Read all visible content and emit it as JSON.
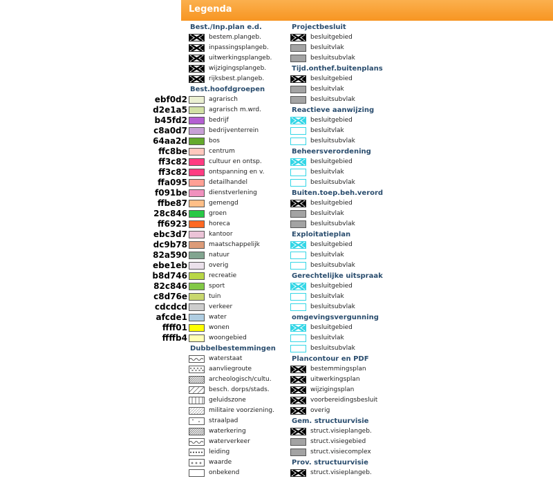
{
  "header": {
    "title": "Legenda"
  },
  "left_column": [
    {
      "type": "heading",
      "text": "Best./Inp.plan e.d."
    },
    {
      "type": "item",
      "label": "bestem.plangeb.",
      "swatch": "cross"
    },
    {
      "type": "item",
      "label": "inpassingsplangeb.",
      "swatch": "cross"
    },
    {
      "type": "item",
      "label": "uitwerkingsplangeb.",
      "swatch": "cross"
    },
    {
      "type": "item",
      "label": "wijzigingsplangeb.",
      "swatch": "cross"
    },
    {
      "type": "item",
      "label": "rijksbest.plangeb.",
      "swatch": "cross"
    },
    {
      "type": "heading",
      "text": "Best.hoofdgroepen"
    },
    {
      "type": "item",
      "label": "agrarisch",
      "swatch": "color",
      "color": "#ebf0d2",
      "code": "ebf0d2"
    },
    {
      "type": "item",
      "label": "agrarisch m.wrd.",
      "swatch": "color",
      "color": "#d2e1a5",
      "code": "d2e1a5"
    },
    {
      "type": "item",
      "label": "bedrijf",
      "swatch": "color",
      "color": "#b45fd2",
      "code": "b45fd2"
    },
    {
      "type": "item",
      "label": "bedrijventerrein",
      "swatch": "color",
      "color": "#c8a0d7",
      "code": "c8a0d7"
    },
    {
      "type": "item",
      "label": "bos",
      "swatch": "color",
      "color": "#64aa2d",
      "code": "64aa2d"
    },
    {
      "type": "item",
      "label": "centrum",
      "swatch": "color",
      "color": "#ffc8be",
      "code": "ffc8be"
    },
    {
      "type": "item",
      "label": "cultuur en ontsp.",
      "swatch": "color",
      "color": "#ff3c82",
      "code": "ff3c82"
    },
    {
      "type": "item",
      "label": "ontspanning en v.",
      "swatch": "color",
      "color": "#ff3c82",
      "code": "ff3c82"
    },
    {
      "type": "item",
      "label": "detailhandel",
      "swatch": "color",
      "color": "#ffa095",
      "code": "ffa095"
    },
    {
      "type": "item",
      "label": "dienstverlening",
      "swatch": "color",
      "color": "#f091be",
      "code": "f091be"
    },
    {
      "type": "item",
      "label": "gemengd",
      "swatch": "color",
      "color": "#ffbe87",
      "code": "ffbe87"
    },
    {
      "type": "item",
      "label": "groen",
      "swatch": "color",
      "color": "#28c846",
      "code": "28c846"
    },
    {
      "type": "item",
      "label": "horeca",
      "swatch": "color",
      "color": "#ff6923",
      "code": "ff6923"
    },
    {
      "type": "item",
      "label": "kantoor",
      "swatch": "color",
      "color": "#ebc3d7",
      "code": "ebc3d7"
    },
    {
      "type": "item",
      "label": "maatschappelijk",
      "swatch": "color",
      "color": "#dc9b78",
      "code": "dc9b78"
    },
    {
      "type": "item",
      "label": "natuur",
      "swatch": "color",
      "color": "#82a590",
      "code": "82a590"
    },
    {
      "type": "item",
      "label": "overig",
      "swatch": "color",
      "color": "#ebe1eb",
      "code": "ebe1eb"
    },
    {
      "type": "item",
      "label": "recreatie",
      "swatch": "color",
      "color": "#b8d746",
      "code": "b8d746"
    },
    {
      "type": "item",
      "label": "sport",
      "swatch": "color",
      "color": "#82c846",
      "code": "82c846"
    },
    {
      "type": "item",
      "label": "tuin",
      "swatch": "color",
      "color": "#c8d76e",
      "code": "c8d76e"
    },
    {
      "type": "item",
      "label": "verkeer",
      "swatch": "color",
      "color": "#cdcdcd",
      "code": "cdcdcd"
    },
    {
      "type": "item",
      "label": "water",
      "swatch": "color",
      "color": "#afcde1",
      "code": "afcde1"
    },
    {
      "type": "item",
      "label": "wonen",
      "swatch": "color",
      "color": "#ffff01",
      "code": "ffff01"
    },
    {
      "type": "item",
      "label": "woongebied",
      "swatch": "color",
      "color": "#ffffb4",
      "code": "ffffb4"
    },
    {
      "type": "heading",
      "text": "Dubbelbestemmingen"
    },
    {
      "type": "item",
      "label": "waterstaat",
      "swatch": "wave"
    },
    {
      "type": "item",
      "label": "aanvliegroute",
      "swatch": "xdots"
    },
    {
      "type": "item",
      "label": "archeologisch/cultu.",
      "swatch": "hatch-dense"
    },
    {
      "type": "item",
      "label": "besch. dorps/stads.",
      "swatch": "hatch-sparse"
    },
    {
      "type": "item",
      "label": "geluidszone",
      "swatch": "vlines"
    },
    {
      "type": "item",
      "label": "militaire voorziening.",
      "swatch": "hatch-dash"
    },
    {
      "type": "item",
      "label": "straalpad",
      "swatch": "dots-sparse"
    },
    {
      "type": "item",
      "label": "waterkering",
      "swatch": "hatch-dense"
    },
    {
      "type": "item",
      "label": "waterverkeer",
      "swatch": "wave"
    },
    {
      "type": "item",
      "label": "leiding",
      "swatch": "dots"
    },
    {
      "type": "item",
      "label": "waarde",
      "swatch": "plus"
    },
    {
      "type": "item",
      "label": "onbekend",
      "swatch": "empty"
    }
  ],
  "right_column": [
    {
      "type": "heading",
      "text": "Projectbesluit"
    },
    {
      "type": "item",
      "label": "besluitgebied",
      "swatch": "cross"
    },
    {
      "type": "item",
      "label": "besluitvlak",
      "swatch": "grey"
    },
    {
      "type": "item",
      "label": "besluitsubvlak",
      "swatch": "grey"
    },
    {
      "type": "heading",
      "text": "Tijd.onthef.buitenplans"
    },
    {
      "type": "item",
      "label": "besluitgebied",
      "swatch": "cross"
    },
    {
      "type": "item",
      "label": "besluitvlak",
      "swatch": "grey"
    },
    {
      "type": "item",
      "label": "besluitsubvlak",
      "swatch": "grey"
    },
    {
      "type": "heading",
      "text": "Reactieve aanwijzing"
    },
    {
      "type": "item",
      "label": "besluitgebied",
      "swatch": "cross-cyan"
    },
    {
      "type": "item",
      "label": "besluitvlak",
      "swatch": "cyan"
    },
    {
      "type": "item",
      "label": "besluitsubvlak",
      "swatch": "cyan"
    },
    {
      "type": "heading",
      "text": "Beheersverordening"
    },
    {
      "type": "item",
      "label": "besluitgebied",
      "swatch": "cross-cyan"
    },
    {
      "type": "item",
      "label": "besluitvlak",
      "swatch": "cyan"
    },
    {
      "type": "item",
      "label": "besluitsubvlak",
      "swatch": "cyan"
    },
    {
      "type": "heading",
      "text": "Buiten.toep.beh.verord"
    },
    {
      "type": "item",
      "label": "besluitgebied",
      "swatch": "cross"
    },
    {
      "type": "item",
      "label": "besluitvlak",
      "swatch": "grey"
    },
    {
      "type": "item",
      "label": "besluitsubvlak",
      "swatch": "grey"
    },
    {
      "type": "heading",
      "text": "Exploitatieplan"
    },
    {
      "type": "item",
      "label": "besluitgebied",
      "swatch": "cross-cyan"
    },
    {
      "type": "item",
      "label": "besluitvlak",
      "swatch": "cyan"
    },
    {
      "type": "item",
      "label": "besluitsubvlak",
      "swatch": "cyan"
    },
    {
      "type": "heading",
      "text": "Gerechtelijke uitspraak"
    },
    {
      "type": "item",
      "label": "besluitgebied",
      "swatch": "cross-cyan"
    },
    {
      "type": "item",
      "label": "besluitvlak",
      "swatch": "cyan"
    },
    {
      "type": "item",
      "label": "besluitsubvlak",
      "swatch": "cyan"
    },
    {
      "type": "heading",
      "text": "omgevingsvergunning"
    },
    {
      "type": "item",
      "label": "besluitgebied",
      "swatch": "cross-cyan"
    },
    {
      "type": "item",
      "label": "besluitvlak",
      "swatch": "cyan"
    },
    {
      "type": "item",
      "label": "besluitsubvlak",
      "swatch": "cyan"
    },
    {
      "type": "heading",
      "text": "Plancontour en PDF"
    },
    {
      "type": "item",
      "label": "bestemmingsplan",
      "swatch": "cross"
    },
    {
      "type": "item",
      "label": "uitwerkingsplan",
      "swatch": "cross"
    },
    {
      "type": "item",
      "label": "wijzigingsplan",
      "swatch": "cross"
    },
    {
      "type": "item",
      "label": "voorbereidingsbesluit",
      "swatch": "cross"
    },
    {
      "type": "item",
      "label": "overig",
      "swatch": "cross"
    },
    {
      "type": "heading",
      "text": "Gem. structuurvisie"
    },
    {
      "type": "item",
      "label": "struct.visieplangeb.",
      "swatch": "cross"
    },
    {
      "type": "item",
      "label": "struct.visiegebied",
      "swatch": "grey"
    },
    {
      "type": "item",
      "label": "struct.visiecomplex",
      "swatch": "grey"
    },
    {
      "type": "heading",
      "text": "Prov. structuurvisie"
    },
    {
      "type": "item",
      "label": "struct.visieplangeb.",
      "swatch": "cross"
    }
  ]
}
